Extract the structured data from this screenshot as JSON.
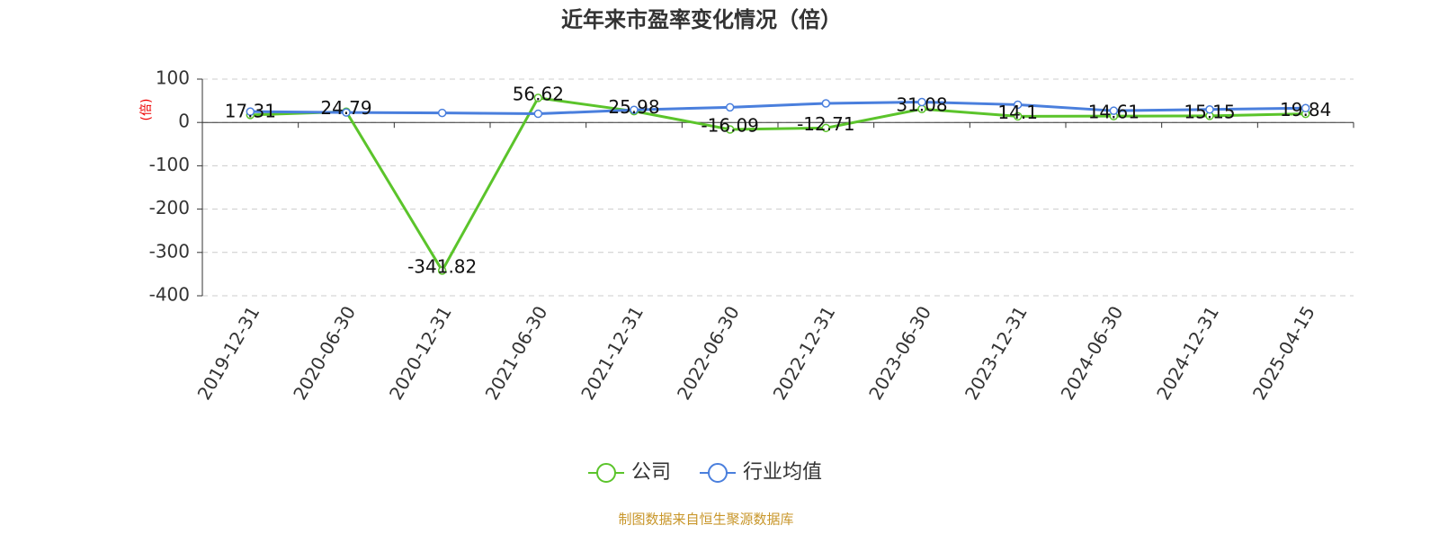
{
  "chart_data": {
    "type": "line",
    "title": "近年来市盈率变化情况（倍）",
    "y_label": "(倍)",
    "categories": [
      "2019-12-31",
      "2020-06-30",
      "2020-12-31",
      "2021-06-30",
      "2021-12-31",
      "2022-06-30",
      "2022-12-31",
      "2023-06-30",
      "2023-12-31",
      "2024-06-30",
      "2024-12-31",
      "2025-04-15"
    ],
    "series": [
      {
        "name": "公司",
        "color": "#5bc42b",
        "values": [
          17.31,
          24.79,
          -341.82,
          56.62,
          25.98,
          -16.09,
          -12.71,
          31.08,
          14.1,
          14.61,
          15.15,
          19.84
        ],
        "labels": true
      },
      {
        "name": "行业均值",
        "color": "#4a7fdd",
        "values": [
          25,
          23,
          22,
          20,
          29,
          35,
          44,
          47,
          41,
          27,
          30,
          33
        ],
        "labels": false
      }
    ],
    "ylim": [
      -400,
      100
    ],
    "yticks": [
      -400,
      -300,
      -200,
      -100,
      0,
      100
    ],
    "grid": true,
    "source": "制图数据来自恒生聚源数据库"
  }
}
